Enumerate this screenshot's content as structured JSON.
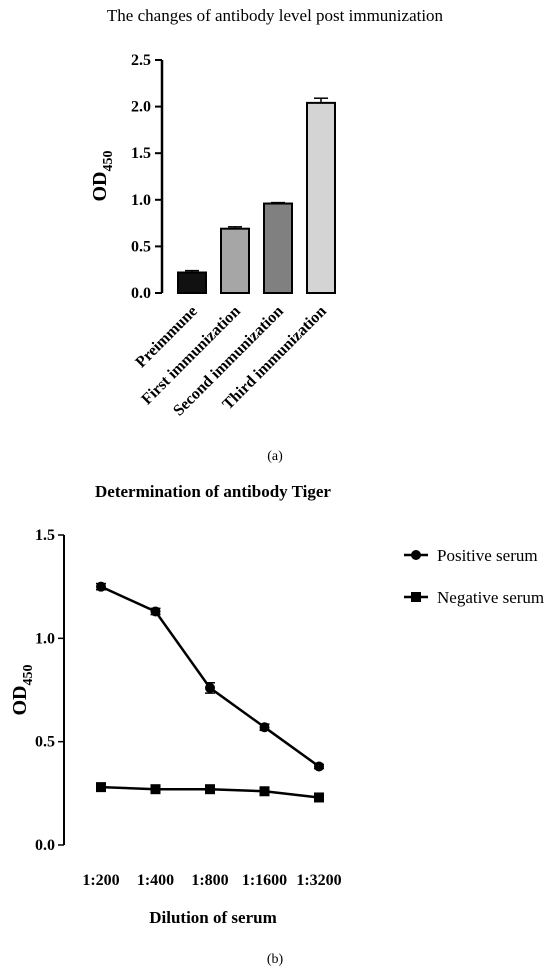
{
  "chart_data": [
    {
      "type": "bar",
      "title": "The changes of antibody level post immunization",
      "ylabel": "OD",
      "ylabel_sub": "450",
      "ylim": [
        0,
        2.5
      ],
      "yticks": [
        "0.0",
        "0.5",
        "1.0",
        "1.5",
        "2.0",
        "2.5"
      ],
      "categories": [
        "Preimmune",
        "First immunization",
        "Second immunization",
        "Third immunization"
      ],
      "values": [
        0.22,
        0.69,
        0.96,
        2.04
      ],
      "errors": [
        0.02,
        0.02,
        0.01,
        0.05
      ],
      "colors": [
        "#111111",
        "#a6a6a6",
        "#808080",
        "#d4d4d4"
      ],
      "panel_label": "(a)"
    },
    {
      "type": "line",
      "title": "Determination of antibody Tiger",
      "xlabel": "Dilution of serum",
      "ylabel": "OD",
      "ylabel_sub": "450",
      "ylim": [
        0,
        1.5
      ],
      "yticks": [
        "0.0",
        "0.5",
        "1.0",
        "1.5"
      ],
      "categories": [
        "1:200",
        "1:400",
        "1:800",
        "1:1600",
        "1:3200"
      ],
      "series": [
        {
          "name": "Positive serum",
          "marker": "circle",
          "values": [
            1.25,
            1.13,
            0.76,
            0.57,
            0.38
          ],
          "errors": [
            0.015,
            0.015,
            0.025,
            0.015,
            0.01
          ]
        },
        {
          "name": "Negative serum",
          "marker": "square",
          "values": [
            0.28,
            0.27,
            0.27,
            0.26,
            0.23
          ],
          "errors": [
            0,
            0,
            0,
            0,
            0
          ]
        }
      ],
      "legend_position": "right",
      "panel_label": "(b)"
    }
  ]
}
